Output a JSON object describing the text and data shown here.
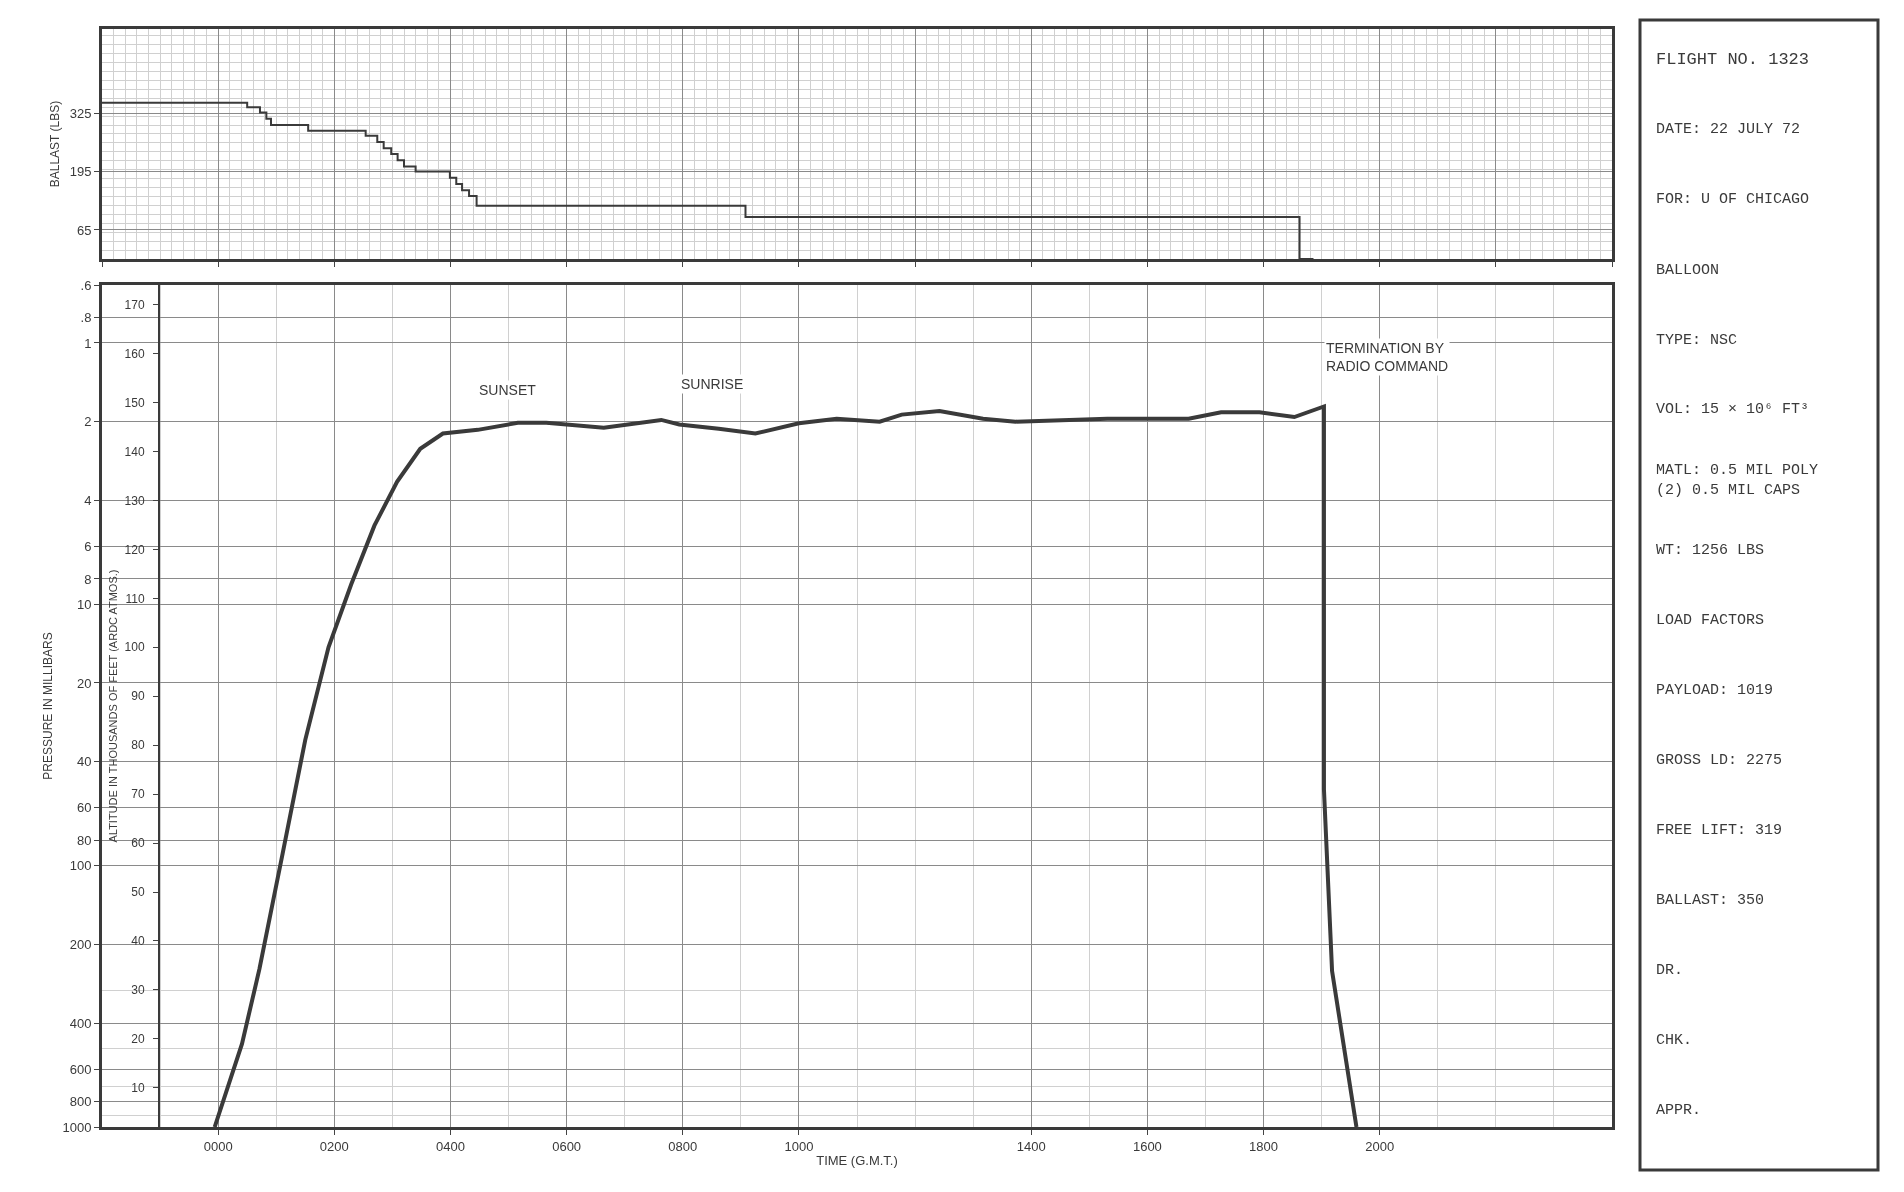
{
  "chart_data": [
    {
      "type": "step",
      "ylabel": "BALLAST (LBS)",
      "x": [
        -200,
        50,
        72,
        83,
        91,
        155,
        254,
        274,
        285,
        298,
        309,
        320,
        340,
        399,
        410,
        420,
        432,
        445,
        908,
        1862,
        1886
      ],
      "series": [
        {
          "color": "#3a3a3a",
          "values": [
            350,
            340,
            328,
            314,
            300,
            287,
            276,
            262,
            248,
            235,
            221,
            207,
            196,
            182,
            168,
            154,
            141,
            119,
            94,
            0,
            0
          ]
        }
      ],
      "xlim": [
        -200,
        2400
      ],
      "ylim": [
        0,
        515
      ],
      "yticks": [
        65,
        195,
        325
      ],
      "grid": true,
      "tick_labels": "y"
    },
    {
      "type": "line",
      "xlabel": "TIME (G.M.T.)",
      "ylabel": "PRESSURE IN MILLIBARS",
      "y2label": "ALTITUDE IN THOUSANDS OF FEET (ARDC ATMOS.)",
      "x": [
        -6,
        41,
        71,
        111,
        150,
        190,
        229,
        269,
        308,
        348,
        387,
        447,
        516,
        565,
        664,
        763,
        794,
        862,
        925,
        1000,
        1065,
        1139,
        1177,
        1242,
        1317,
        1373,
        1531,
        1671,
        1727,
        1793,
        1853,
        1904,
        1904,
        1918,
        1960
      ],
      "series": [
        {
          "color": "#3a3a3a",
          "values": [
            1000,
            481,
            249,
            90,
            33,
            14.6,
            8.4,
            5.0,
            3.4,
            2.54,
            2.22,
            2.15,
            2.02,
            2.02,
            2.11,
            1.97,
            2.05,
            2.13,
            2.22,
            2.03,
            1.95,
            2.0,
            1.88,
            1.82,
            1.95,
            2.0,
            1.95,
            1.95,
            1.84,
            1.84,
            1.92,
            1.75,
            51,
            253,
            1000
          ]
        }
      ],
      "xlim": [
        -200,
        2400
      ],
      "xticks": [
        {
          "value": 0,
          "label": "0000"
        },
        {
          "value": 200,
          "label": "0200"
        },
        {
          "value": 400,
          "label": "0400"
        },
        {
          "value": 600,
          "label": "0600"
        },
        {
          "value": 800,
          "label": "0800"
        },
        {
          "value": 1000,
          "label": "1000"
        },
        {
          "value": 1400,
          "label": "1400"
        },
        {
          "value": 1600,
          "label": "1600"
        },
        {
          "value": 1800,
          "label": "1800"
        },
        {
          "value": 2000,
          "label": "2000"
        }
      ],
      "ylim": [
        1000,
        0.6
      ],
      "log": true,
      "yticks": [
        {
          "value": 0.6,
          "label": ".6"
        },
        {
          "value": 0.8,
          "label": ".8"
        },
        1,
        2,
        4,
        6,
        8,
        10,
        20,
        40,
        60,
        80,
        100,
        200,
        400,
        600,
        800,
        1000
      ],
      "y2lim": [
        2,
        174
      ],
      "y2ticks": [
        10,
        20,
        30,
        40,
        50,
        60,
        70,
        80,
        90,
        100,
        110,
        120,
        130,
        140,
        150,
        160,
        170
      ],
      "grid": true,
      "annotations": [
        {
          "text": "SUNSET",
          "x": 445,
          "y": 2.15
        },
        {
          "text": "SUNRISE",
          "x": 794,
          "y": 2.05
        },
        {
          "text": "TERMINATION BY\nRADIO COMMAND",
          "x": 1904,
          "y": 1.75
        }
      ]
    },
    {
      "type": "other",
      "annotations": [
        "FLIGHT NO. 1323",
        "DATE: 22 JULY 72",
        "FOR: U OF CHICAGO",
        "BALLOON",
        "TYPE: NSC",
        "VOL: 15 × 10⁶ FT³",
        "MATL: 0.5 MIL POLY\n(2) 0.5 MIL CAPS",
        "WT: 1256 LBS",
        "LOAD FACTORS",
        "PAYLOAD: 1019",
        "GROSS LD: 2275",
        "FREE LIFT: 319",
        "BALLAST: 350",
        "DR.",
        "CHK.",
        "APPR."
      ]
    }
  ]
}
